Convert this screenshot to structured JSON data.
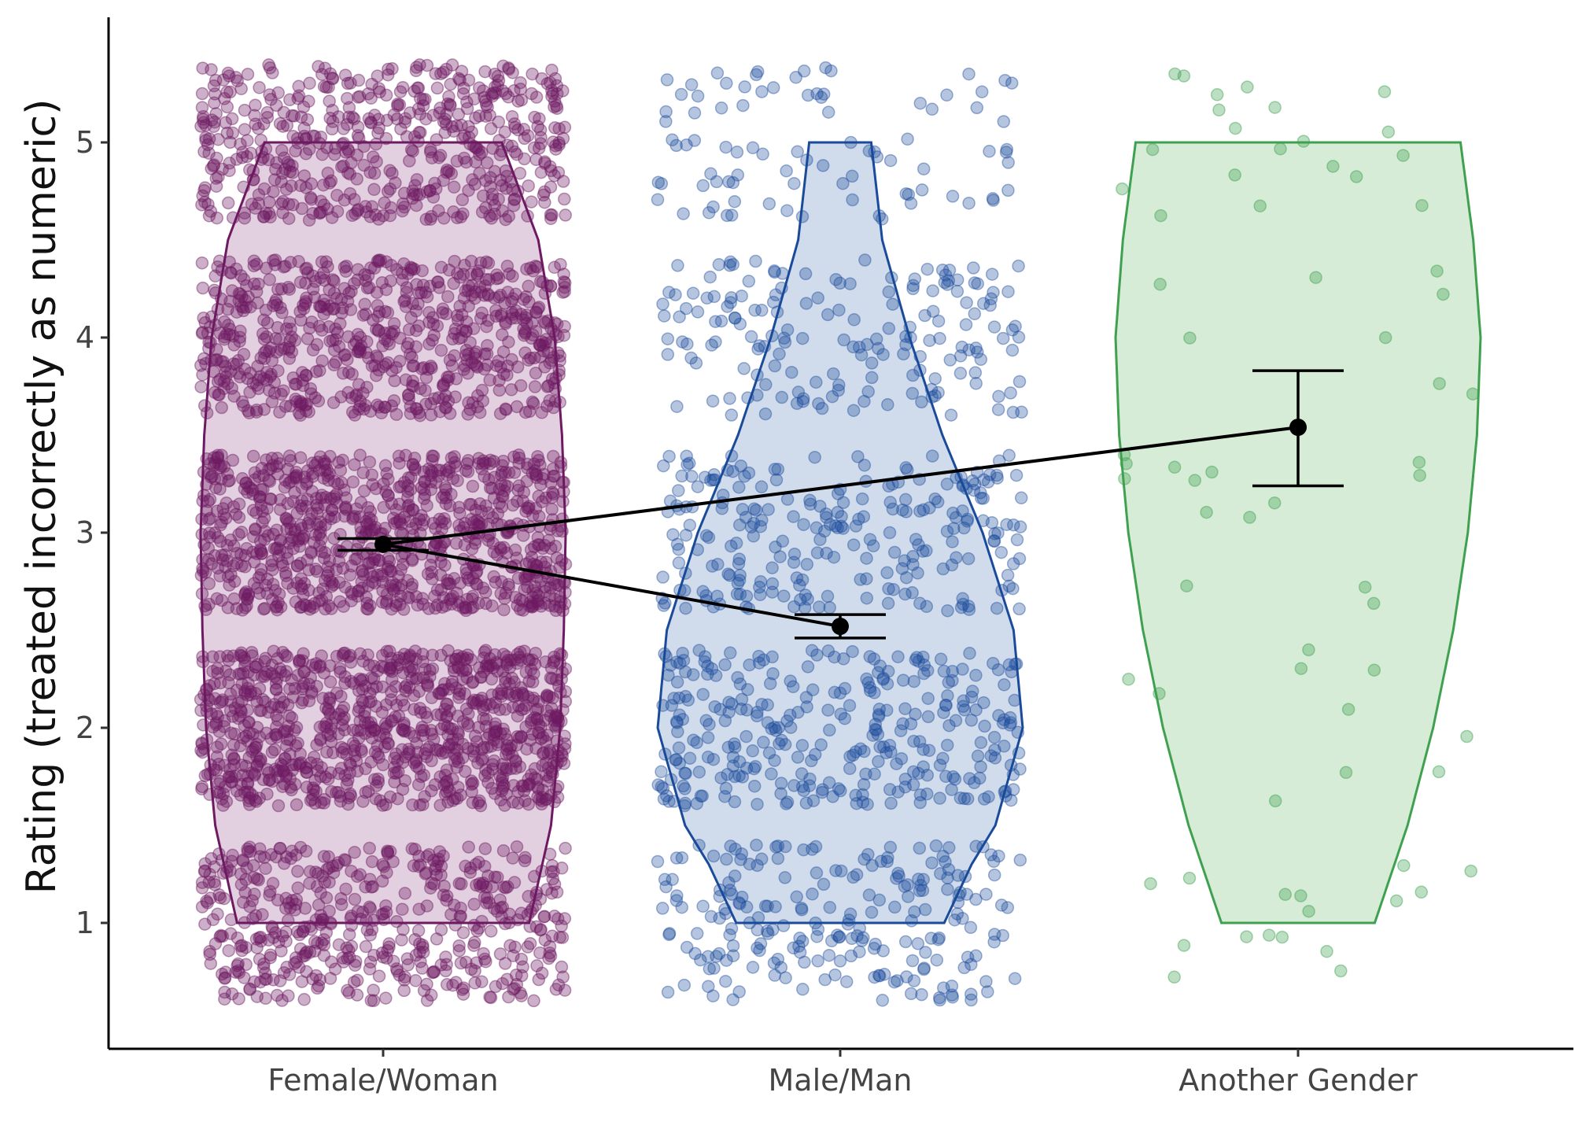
{
  "chart_data": {
    "type": "violin",
    "title": "",
    "xlabel": "",
    "ylabel": "Rating (treated incorrectly as numeric)",
    "categories": [
      "Female/Woman",
      "Male/Man",
      "Another Gender"
    ],
    "y_ticks": [
      "1",
      "2",
      "3",
      "4",
      "5"
    ],
    "ylim": [
      0.42,
      5.58
    ],
    "grid": false,
    "legend": "none",
    "series": [
      {
        "category": "Female/Woman",
        "color": "#6e1a62",
        "fill": "#e2cfdf",
        "mean": 2.94,
        "ci": [
          2.91,
          2.97
        ],
        "n_points": 3600,
        "density": [
          [
            1.0,
            0.8
          ],
          [
            1.5,
            0.92
          ],
          [
            2.0,
            0.97
          ],
          [
            2.5,
            0.99
          ],
          [
            3.0,
            1.0
          ],
          [
            3.5,
            0.98
          ],
          [
            4.0,
            0.94
          ],
          [
            4.5,
            0.85
          ],
          [
            5.0,
            0.65
          ]
        ],
        "level_weights": [
          0.13,
          0.26,
          0.26,
          0.2,
          0.15
        ]
      },
      {
        "category": "Male/Man",
        "color": "#1a4b9a",
        "fill": "#d0dbeb",
        "mean": 2.52,
        "ci": [
          2.46,
          2.58
        ],
        "n_points": 1050,
        "density": [
          [
            1.0,
            0.57
          ],
          [
            1.3,
            0.72
          ],
          [
            1.5,
            0.85
          ],
          [
            2.0,
            1.0
          ],
          [
            2.5,
            0.95
          ],
          [
            3.0,
            0.78
          ],
          [
            3.5,
            0.56
          ],
          [
            4.0,
            0.38
          ],
          [
            4.5,
            0.23
          ],
          [
            5.0,
            0.17
          ]
        ],
        "level_weights": [
          0.22,
          0.31,
          0.23,
          0.16,
          0.08
        ]
      },
      {
        "category": "Another Gender",
        "color": "#3fa14f",
        "fill": "#d6ecd6",
        "mean": 3.54,
        "ci": [
          3.24,
          3.83
        ],
        "n_points": 68,
        "density": [
          [
            1.0,
            0.42
          ],
          [
            1.5,
            0.6
          ],
          [
            2.0,
            0.74
          ],
          [
            2.5,
            0.85
          ],
          [
            3.0,
            0.93
          ],
          [
            3.5,
            0.98
          ],
          [
            4.0,
            1.0
          ],
          [
            4.5,
            0.96
          ],
          [
            5.0,
            0.89
          ]
        ],
        "level_weights": [
          0.16,
          0.13,
          0.24,
          0.19,
          0.28
        ]
      }
    ],
    "mean_connectors": [
      [
        "Female/Woman",
        "Male/Man"
      ],
      [
        "Female/Woman",
        "Another Gender"
      ]
    ]
  }
}
